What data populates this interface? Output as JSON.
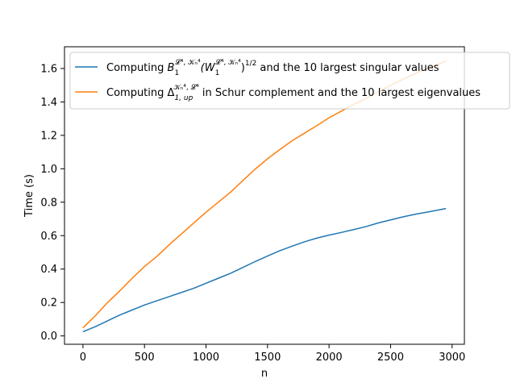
{
  "chart_data": {
    "type": "line",
    "xlabel": "n",
    "ylabel": "Time (s)",
    "xlim": [
      -150,
      3100
    ],
    "ylim": [
      -0.05,
      1.73
    ],
    "xticks": [
      0,
      500,
      1000,
      1500,
      2000,
      2500,
      3000
    ],
    "yticks": [
      0.0,
      0.2,
      0.4,
      0.6,
      0.8,
      1.0,
      1.2,
      1.4,
      1.6
    ],
    "xtick_labels": [
      "0",
      "500",
      "1000",
      "1500",
      "2000",
      "2500",
      "3000"
    ],
    "ytick_labels": [
      "0.0",
      "0.2",
      "0.4",
      "0.6",
      "0.8",
      "1.0",
      "1.2",
      "1.4",
      "1.6"
    ],
    "grid": false,
    "legend_position": "top-right",
    "series": [
      {
        "name": "Computing B_1^{L^4,K_n^4}(W_1^{L^4,K_n^4})^{1/2} and the 10 largest singular values",
        "legend_pre": "Computing ",
        "legend_base1": "B",
        "legend_sub1": "1",
        "legend_sup1": "𝓛⁴, 𝒦ₙ⁴",
        "legend_mid": "(W",
        "legend_sub2": "1",
        "legend_sup2": "𝓛⁴, 𝒦ₙ⁴",
        "legend_post": ")",
        "legend_sup3": "1/2",
        "legend_tail": " and the 10 largest singular values",
        "color": "#1f77b4",
        "x": [
          0,
          100,
          200,
          300,
          400,
          500,
          600,
          700,
          800,
          900,
          1000,
          1100,
          1200,
          1300,
          1400,
          1500,
          1600,
          1700,
          1800,
          1900,
          2000,
          2100,
          2200,
          2300,
          2400,
          2500,
          2600,
          2700,
          2800,
          2900,
          2950
        ],
        "y": [
          0.025,
          0.055,
          0.09,
          0.125,
          0.155,
          0.185,
          0.21,
          0.235,
          0.26,
          0.285,
          0.315,
          0.345,
          0.375,
          0.41,
          0.445,
          0.478,
          0.51,
          0.537,
          0.563,
          0.585,
          0.603,
          0.619,
          0.636,
          0.654,
          0.676,
          0.694,
          0.712,
          0.728,
          0.741,
          0.755,
          0.762
        ]
      },
      {
        "name": "Computing Δ_{1,up}^{K_n^4,L^4} in Schur complement and the 10 largest eigenvalues",
        "legend_pre": "Computing ",
        "legend_base1": "Δ",
        "legend_sub1": "1, up",
        "legend_sup1": "𝒦ₙ⁴, 𝓛⁴",
        "legend_tail": " in Schur complement and the 10 largest eigenvalues",
        "color": "#ff7f0e",
        "x": [
          0,
          100,
          200,
          300,
          400,
          500,
          600,
          700,
          800,
          900,
          1000,
          1100,
          1200,
          1300,
          1400,
          1500,
          1600,
          1700,
          1800,
          1900,
          2000,
          2100,
          2200,
          2300,
          2400,
          2500,
          2600,
          2700,
          2800,
          2900,
          2950
        ],
        "y": [
          0.048,
          0.12,
          0.2,
          0.27,
          0.345,
          0.415,
          0.475,
          0.545,
          0.61,
          0.675,
          0.74,
          0.8,
          0.86,
          0.93,
          0.998,
          1.06,
          1.115,
          1.168,
          1.213,
          1.258,
          1.305,
          1.345,
          1.385,
          1.42,
          1.46,
          1.5,
          1.535,
          1.57,
          1.6,
          1.63,
          1.645
        ]
      }
    ]
  }
}
